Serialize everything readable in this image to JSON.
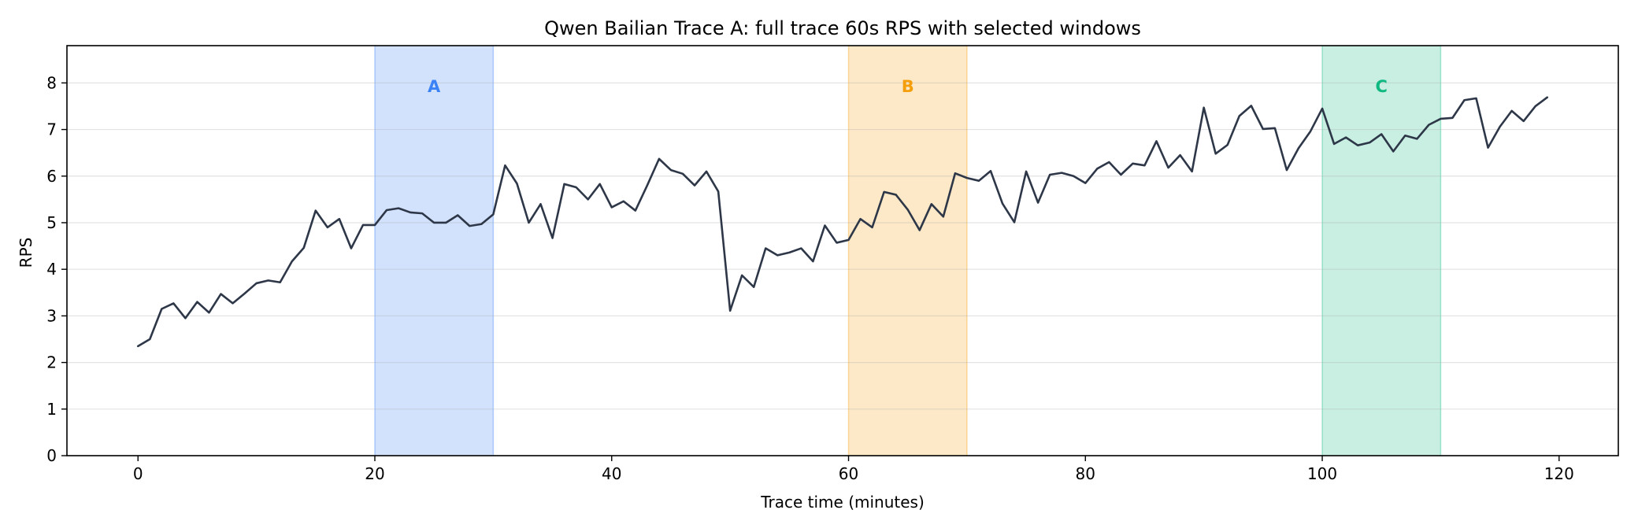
{
  "chart_data": {
    "type": "line",
    "title": "Qwen Bailian Trace A: full trace 60s RPS with selected windows",
    "xlabel": "Trace time (minutes)",
    "ylabel": "RPS",
    "xlim": [
      -6,
      125
    ],
    "ylim": [
      0,
      8.8
    ],
    "xticks": [
      0,
      20,
      40,
      60,
      80,
      100,
      120
    ],
    "yticks": [
      0,
      1,
      2,
      3,
      4,
      5,
      6,
      7,
      8
    ],
    "grid": "horizontal",
    "line_color": "#2d3748",
    "windows": [
      {
        "label": "A",
        "start": 20,
        "end": 30,
        "color": "#3b82f6"
      },
      {
        "label": "B",
        "start": 60,
        "end": 70,
        "color": "#f59e0b"
      },
      {
        "label": "C",
        "start": 100,
        "end": 110,
        "color": "#10b981"
      }
    ],
    "series": [
      {
        "x": [
          0,
          1,
          2,
          3,
          4,
          5,
          6,
          7,
          8,
          9,
          10,
          11,
          12,
          13,
          14,
          15,
          16,
          17,
          18,
          19,
          20,
          21,
          22,
          23,
          24,
          25,
          26,
          27,
          28,
          29,
          30,
          31,
          32,
          33,
          34,
          35,
          36,
          37,
          38,
          39,
          40,
          41,
          42,
          43,
          44,
          45,
          46,
          47,
          48,
          49,
          50,
          51,
          52,
          53,
          54,
          55,
          56,
          57,
          58,
          59,
          60,
          61,
          62,
          63,
          64,
          65,
          66,
          67,
          68,
          69,
          70,
          71,
          72,
          73,
          74,
          75,
          76,
          77,
          78,
          79,
          80,
          81,
          82,
          83,
          84,
          85,
          86,
          87,
          88,
          89,
          90,
          91,
          92,
          93,
          94,
          95,
          96,
          97,
          98,
          99,
          100,
          101,
          102,
          103,
          104,
          105,
          106,
          107,
          108,
          109,
          110,
          111,
          112,
          113,
          114,
          115,
          116,
          117,
          118,
          119
        ],
        "values": [
          2.35,
          2.5,
          3.15,
          3.27,
          2.95,
          3.3,
          3.07,
          3.47,
          3.27,
          3.48,
          3.7,
          3.76,
          3.72,
          4.17,
          4.46,
          5.26,
          4.9,
          5.08,
          4.45,
          4.95,
          4.95,
          5.27,
          5.31,
          5.22,
          5.2,
          5.0,
          5.0,
          5.16,
          4.93,
          4.97,
          5.18,
          6.23,
          5.84,
          5.0,
          5.4,
          4.67,
          5.83,
          5.76,
          5.5,
          5.83,
          5.33,
          5.46,
          5.26,
          5.8,
          6.37,
          6.13,
          6.05,
          5.8,
          6.1,
          5.67,
          3.11,
          3.87,
          3.62,
          4.45,
          4.3,
          4.36,
          4.45,
          4.17,
          4.94,
          4.57,
          4.63,
          5.08,
          4.9,
          5.66,
          5.6,
          5.28,
          4.84,
          5.4,
          5.13,
          6.06,
          5.96,
          5.9,
          6.11,
          5.41,
          5.01,
          6.1,
          5.43,
          6.03,
          6.07,
          6.0,
          5.85,
          6.16,
          6.3,
          6.03,
          6.27,
          6.23,
          6.75,
          6.18,
          6.45,
          6.1,
          7.47,
          6.48,
          6.67,
          7.29,
          7.51,
          7.01,
          7.03,
          6.13,
          6.6,
          6.96,
          7.45,
          6.69,
          6.83,
          6.66,
          6.72,
          6.9,
          6.53,
          6.87,
          6.8,
          7.1,
          7.23,
          7.25,
          7.63,
          7.67,
          6.61,
          7.06,
          7.4,
          7.18,
          7.5,
          7.69
        ]
      }
    ]
  }
}
